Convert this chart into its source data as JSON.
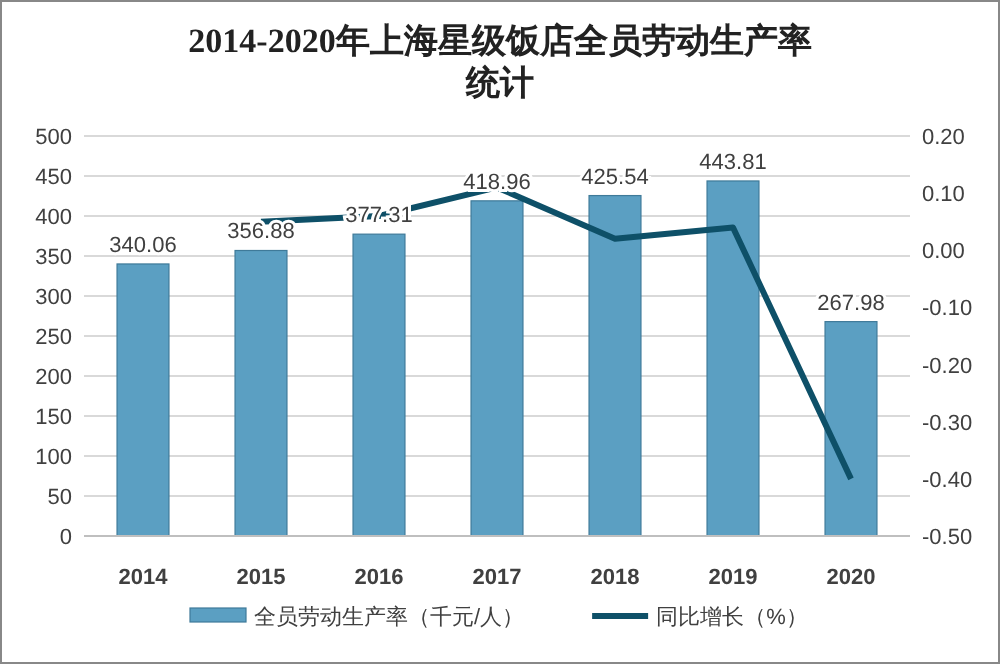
{
  "chart_data": {
    "type": "bar",
    "title": "2014-2020年上海星级饭店全员劳动生产率统计",
    "categories": [
      "2014",
      "2015",
      "2016",
      "2017",
      "2018",
      "2019",
      "2020"
    ],
    "series": [
      {
        "name": "全员劳动生产率（千元/人）",
        "color": "#5b9fc2",
        "values": [
          340.06,
          356.88,
          377.31,
          418.96,
          425.54,
          443.81,
          267.98
        ],
        "data_labels": true
      },
      {
        "name": "同比增长（%）",
        "type": "line",
        "axis": "y2",
        "color": "#0e5068",
        "values": [
          null,
          0.05,
          0.06,
          0.11,
          0.02,
          0.04,
          -0.4
        ]
      }
    ],
    "ylim": [
      0,
      500
    ],
    "yticks": [
      0,
      50,
      100,
      150,
      200,
      250,
      300,
      350,
      400,
      450,
      500
    ],
    "y2lim": [
      -0.5,
      0.2
    ],
    "y2ticks": [
      {
        "value": -0.5,
        "label": "-0.50"
      },
      {
        "value": -0.4,
        "label": "-0.40"
      },
      {
        "value": -0.3,
        "label": "-0.30"
      },
      {
        "value": -0.2,
        "label": "-0.20"
      },
      {
        "value": -0.1,
        "label": "-0.10"
      },
      {
        "value": 0,
        "label": "0.00"
      },
      {
        "value": 0.1,
        "label": "0.10"
      },
      {
        "value": 0.2,
        "label": "0.20"
      }
    ],
    "grid": "y",
    "legend": "bottom"
  }
}
